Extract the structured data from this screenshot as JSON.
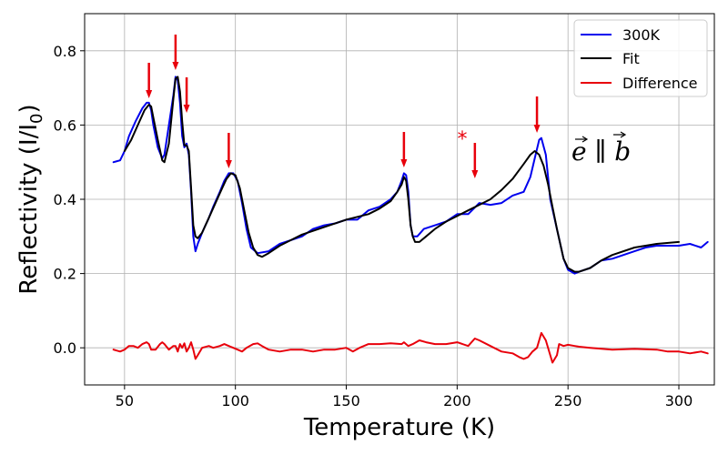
{
  "chart_data": {
    "type": "line",
    "xlabel": "Temperature (K)",
    "ylabel": "Reflectivity (I/I",
    "ylabel_sub": "0",
    "ylabel_end": ")",
    "xlim": [
      32,
      316
    ],
    "ylim": [
      -0.1,
      0.9
    ],
    "xticks": [
      50,
      100,
      150,
      200,
      250,
      300
    ],
    "yticks": [
      0.0,
      0.2,
      0.4,
      0.6,
      0.8
    ],
    "xtick_labels": [
      "50",
      "100",
      "150",
      "200",
      "250",
      "300"
    ],
    "ytick_labels": [
      "0.0",
      "0.2",
      "0.4",
      "0.6",
      "0.8"
    ],
    "grid": true,
    "legend_position": "top-right",
    "annotation_text": "e ∥ b",
    "star_text": "*",
    "colors": {
      "300K": "#0000ee",
      "Fit": "#000000",
      "Difference": "#e8000b",
      "arrow": "#e8000b",
      "grid": "#b0b0b0"
    },
    "arrows_x": [
      61,
      73,
      78,
      97,
      176,
      208,
      236
    ],
    "series": [
      {
        "name": "300K",
        "x": [
          45,
          48,
          50,
          52,
          55,
          58,
          60,
          61,
          62,
          63,
          65,
          67,
          68,
          70,
          72,
          73,
          74,
          75,
          76,
          77,
          78,
          79,
          80,
          81,
          82,
          83,
          85,
          88,
          90,
          93,
          95,
          97,
          99,
          101,
          103,
          105,
          107,
          110,
          115,
          120,
          125,
          130,
          135,
          140,
          145,
          150,
          155,
          160,
          165,
          170,
          173,
          175,
          176,
          177,
          178,
          179,
          180,
          182,
          185,
          190,
          195,
          200,
          205,
          210,
          215,
          220,
          225,
          230,
          233,
          235,
          237,
          238,
          240,
          242,
          245,
          248,
          250,
          253,
          255,
          260,
          265,
          270,
          275,
          280,
          285,
          290,
          295,
          300,
          305,
          310,
          313
        ],
        "y": [
          0.5,
          0.505,
          0.53,
          0.57,
          0.61,
          0.645,
          0.66,
          0.66,
          0.64,
          0.6,
          0.54,
          0.51,
          0.52,
          0.6,
          0.68,
          0.73,
          0.72,
          0.66,
          0.57,
          0.54,
          0.55,
          0.52,
          0.42,
          0.3,
          0.26,
          0.28,
          0.31,
          0.35,
          0.38,
          0.42,
          0.45,
          0.47,
          0.47,
          0.45,
          0.39,
          0.32,
          0.27,
          0.255,
          0.26,
          0.28,
          0.29,
          0.3,
          0.32,
          0.33,
          0.335,
          0.345,
          0.345,
          0.37,
          0.38,
          0.4,
          0.42,
          0.45,
          0.47,
          0.465,
          0.42,
          0.33,
          0.3,
          0.3,
          0.32,
          0.33,
          0.34,
          0.36,
          0.36,
          0.39,
          0.385,
          0.39,
          0.41,
          0.42,
          0.46,
          0.51,
          0.56,
          0.565,
          0.52,
          0.4,
          0.32,
          0.24,
          0.21,
          0.2,
          0.205,
          0.215,
          0.235,
          0.24,
          0.25,
          0.26,
          0.27,
          0.275,
          0.275,
          0.275,
          0.28,
          0.27,
          0.285
        ]
      },
      {
        "name": "Fit",
        "x": [
          50,
          53,
          56,
          59,
          61,
          62,
          63,
          65,
          67,
          68,
          70,
          72,
          73,
          74,
          75,
          76,
          77,
          78,
          79,
          80,
          81,
          82,
          83,
          85,
          88,
          91,
          94,
          96,
          98,
          100,
          102,
          104,
          106,
          108,
          110,
          112,
          115,
          120,
          125,
          130,
          140,
          150,
          160,
          165,
          170,
          173,
          175,
          176,
          177,
          178,
          179,
          180,
          181,
          183,
          186,
          190,
          195,
          200,
          205,
          210,
          215,
          220,
          225,
          230,
          233,
          235,
          237,
          239,
          241,
          243,
          245,
          248,
          250,
          253,
          255,
          260,
          265,
          270,
          280,
          290,
          300
        ],
        "y": [
          0.53,
          0.56,
          0.6,
          0.64,
          0.655,
          0.65,
          0.62,
          0.56,
          0.505,
          0.5,
          0.55,
          0.67,
          0.725,
          0.73,
          0.69,
          0.61,
          0.545,
          0.545,
          0.53,
          0.43,
          0.33,
          0.3,
          0.295,
          0.31,
          0.35,
          0.39,
          0.43,
          0.455,
          0.47,
          0.465,
          0.43,
          0.37,
          0.31,
          0.27,
          0.25,
          0.245,
          0.255,
          0.275,
          0.29,
          0.305,
          0.325,
          0.345,
          0.36,
          0.375,
          0.395,
          0.42,
          0.44,
          0.46,
          0.45,
          0.4,
          0.33,
          0.3,
          0.285,
          0.285,
          0.3,
          0.32,
          0.34,
          0.355,
          0.37,
          0.385,
          0.4,
          0.425,
          0.455,
          0.495,
          0.52,
          0.53,
          0.52,
          0.49,
          0.44,
          0.38,
          0.32,
          0.24,
          0.215,
          0.205,
          0.205,
          0.215,
          0.235,
          0.25,
          0.27,
          0.28,
          0.285
        ]
      },
      {
        "name": "Difference",
        "x": [
          45,
          48,
          50,
          52,
          54,
          56,
          58,
          60,
          61,
          62,
          64,
          66,
          67,
          68,
          70,
          72,
          73,
          74,
          75,
          76,
          77,
          78,
          79,
          80,
          81,
          82,
          83,
          85,
          88,
          90,
          93,
          95,
          97,
          99,
          101,
          103,
          105,
          108,
          110,
          112,
          115,
          120,
          125,
          130,
          135,
          140,
          145,
          150,
          153,
          156,
          160,
          165,
          170,
          175,
          176,
          178,
          180,
          183,
          186,
          190,
          195,
          200,
          205,
          208,
          210,
          215,
          220,
          225,
          228,
          230,
          232,
          234,
          236,
          238,
          240,
          242,
          243,
          245,
          246,
          248,
          250,
          253,
          255,
          260,
          270,
          280,
          290,
          295,
          300,
          305,
          310,
          313
        ],
        "y": [
          -0.005,
          -0.01,
          -0.005,
          0.005,
          0.005,
          0.0,
          0.01,
          0.015,
          0.01,
          -0.005,
          -0.005,
          0.01,
          0.015,
          0.01,
          -0.005,
          0.005,
          0.005,
          -0.01,
          0.01,
          0.0,
          0.012,
          -0.01,
          0.0,
          0.015,
          -0.005,
          -0.03,
          -0.02,
          0.0,
          0.005,
          0.0,
          0.005,
          0.01,
          0.005,
          0.0,
          -0.005,
          -0.01,
          0.0,
          0.01,
          0.012,
          0.005,
          -0.005,
          -0.01,
          -0.005,
          -0.005,
          -0.01,
          -0.005,
          -0.005,
          0.0,
          -0.01,
          0.0,
          0.01,
          0.01,
          0.012,
          0.01,
          0.015,
          0.005,
          0.01,
          0.02,
          0.015,
          0.01,
          0.01,
          0.015,
          0.005,
          0.025,
          0.02,
          0.005,
          -0.01,
          -0.015,
          -0.025,
          -0.03,
          -0.025,
          -0.01,
          0.0,
          0.04,
          0.02,
          -0.02,
          -0.04,
          -0.02,
          0.01,
          0.005,
          0.008,
          0.005,
          0.003,
          0.0,
          -0.005,
          -0.003,
          -0.005,
          -0.01,
          -0.01,
          -0.015,
          -0.01,
          -0.015
        ]
      }
    ]
  }
}
